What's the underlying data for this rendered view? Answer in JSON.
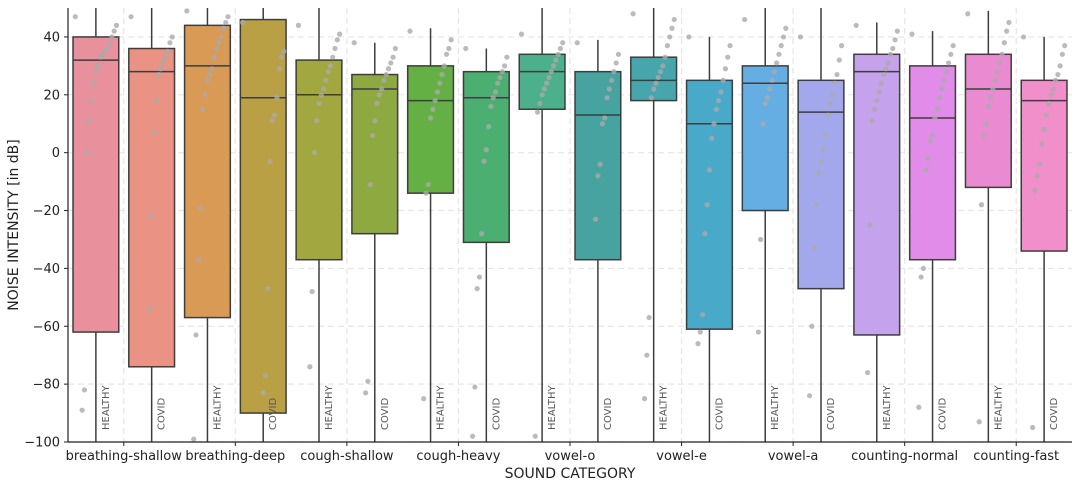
{
  "chart_data": {
    "type": "box",
    "xlabel": "SOUND CATEGORY",
    "ylabel": "NOISE INTENSITY [in dB]",
    "ylim": [
      -100,
      50
    ],
    "yticks": [
      40,
      20,
      0,
      -20,
      -40,
      -60,
      -80,
      -100
    ],
    "grid": true,
    "categories": [
      "breathing-shallow",
      "breathing-deep",
      "cough-shallow",
      "cough-heavy",
      "vowel-o",
      "vowel-e",
      "vowel-a",
      "counting-normal",
      "counting-fast"
    ],
    "groups": [
      "HEALTHY",
      "COVID"
    ],
    "boxes": [
      {
        "category": "breathing-shallow",
        "group": "HEALTHY",
        "color": "#e8909c",
        "q1": -62,
        "median": 32,
        "q3": 40,
        "whisker_low": -100,
        "whisker_high": 50,
        "points": [
          47,
          44,
          42,
          40,
          38,
          36,
          35,
          34,
          33,
          30,
          28,
          24,
          18,
          11,
          0,
          -82,
          -89
        ]
      },
      {
        "category": "breathing-shallow",
        "group": "COVID",
        "color": "#ea9283",
        "q1": -74,
        "median": 28,
        "q3": 36,
        "whisker_low": -100,
        "whisker_high": 50,
        "points": [
          47,
          40,
          38,
          35,
          33,
          31,
          29,
          27,
          18,
          7,
          -22,
          -54
        ]
      },
      {
        "category": "breathing-deep",
        "group": "HEALTHY",
        "color": "#d99a55",
        "q1": -57,
        "median": 30,
        "q3": 44,
        "whisker_low": -100,
        "whisker_high": 50,
        "points": [
          49,
          47,
          45,
          43,
          40,
          38,
          36,
          33,
          29,
          27,
          25,
          20,
          15,
          -19,
          -37,
          -63,
          -99
        ]
      },
      {
        "category": "breathing-deep",
        "group": "COVID",
        "color": "#b9a044",
        "q1": -90,
        "median": 19,
        "q3": 46,
        "whisker_low": -100,
        "whisker_high": 50,
        "points": [
          45,
          35,
          33,
          29,
          19,
          13,
          11,
          -3,
          -47,
          -77,
          -83
        ]
      },
      {
        "category": "cough-shallow",
        "group": "HEALTHY",
        "color": "#a3a73f",
        "q1": -37,
        "median": 20,
        "q3": 32,
        "whisker_low": -100,
        "whisker_high": 50,
        "points": [
          44,
          41,
          39,
          36,
          33,
          30,
          28,
          25,
          22,
          20,
          17,
          11,
          0,
          -48,
          -74
        ]
      },
      {
        "category": "cough-shallow",
        "group": "COVID",
        "color": "#8ea93f",
        "q1": -28,
        "median": 22,
        "q3": 27,
        "whisker_low": -100,
        "whisker_high": 38,
        "points": [
          38,
          36,
          33,
          31,
          29,
          27,
          25,
          22,
          20,
          17,
          11,
          6,
          -11,
          -79,
          -83
        ]
      },
      {
        "category": "cough-heavy",
        "group": "HEALTHY",
        "color": "#64b045",
        "q1": -14,
        "median": 18,
        "q3": 30,
        "whisker_low": -100,
        "whisker_high": 43,
        "points": [
          42,
          39,
          36,
          34,
          30,
          27,
          24,
          21,
          18,
          15,
          12,
          -11,
          -14,
          -85
        ]
      },
      {
        "category": "cough-heavy",
        "group": "COVID",
        "color": "#4caf72",
        "q1": -31,
        "median": 19,
        "q3": 28,
        "whisker_low": -100,
        "whisker_high": 36,
        "points": [
          36,
          33,
          30,
          28,
          26,
          24,
          21,
          19,
          16,
          9,
          1,
          -3,
          -28,
          -43,
          -47,
          -81,
          -98
        ]
      },
      {
        "category": "vowel-o",
        "group": "HEALTHY",
        "color": "#4cb08d",
        "q1": 15,
        "median": 28,
        "q3": 34,
        "whisker_low": -100,
        "whisker_high": 50,
        "points": [
          41,
          38,
          36,
          34,
          32,
          30,
          28,
          26,
          24,
          22,
          20,
          17,
          14,
          -98
        ]
      },
      {
        "category": "vowel-o",
        "group": "COVID",
        "color": "#47a3a0",
        "q1": -37,
        "median": 13,
        "q3": 28,
        "whisker_low": -100,
        "whisker_high": 39,
        "points": [
          38,
          34,
          31,
          28,
          25,
          22,
          19,
          12,
          10,
          -4,
          -8,
          -23
        ]
      },
      {
        "category": "vowel-e",
        "group": "HEALTHY",
        "color": "#47a6ab",
        "q1": 18,
        "median": 25,
        "q3": 33,
        "whisker_low": -100,
        "whisker_high": 50,
        "points": [
          48,
          46,
          43,
          40,
          37,
          33,
          30,
          28,
          26,
          24,
          22,
          19,
          -57,
          -70,
          -85
        ]
      },
      {
        "category": "vowel-e",
        "group": "COVID",
        "color": "#49a9c8",
        "q1": -61,
        "median": 10,
        "q3": 25,
        "whisker_low": -100,
        "whisker_high": 40,
        "points": [
          40,
          37,
          33,
          29,
          25,
          21,
          18,
          15,
          10,
          5,
          -6,
          -18,
          -28,
          -56,
          -62,
          -66
        ]
      },
      {
        "category": "vowel-a",
        "group": "HEALTHY",
        "color": "#64aee4",
        "q1": -20,
        "median": 24,
        "q3": 30,
        "whisker_low": -100,
        "whisker_high": 50,
        "points": [
          46,
          43,
          40,
          37,
          34,
          31,
          28,
          25,
          22,
          19,
          17,
          10,
          -30,
          -62
        ]
      },
      {
        "category": "vowel-a",
        "group": "COVID",
        "color": "#a3a8ec",
        "q1": -47,
        "median": 14,
        "q3": 25,
        "whisker_low": -100,
        "whisker_high": 50,
        "points": [
          40,
          37,
          32,
          27,
          24,
          20,
          17,
          13,
          6,
          1,
          -3,
          -7,
          -18,
          -33,
          -60,
          -84
        ]
      },
      {
        "category": "counting-normal",
        "group": "HEALTHY",
        "color": "#c5a2ec",
        "q1": -63,
        "median": 28,
        "q3": 34,
        "whisker_low": -100,
        "whisker_high": 45,
        "points": [
          44,
          42,
          39,
          36,
          34,
          31,
          29,
          27,
          24,
          21,
          18,
          15,
          11,
          -25,
          -76
        ]
      },
      {
        "category": "counting-normal",
        "group": "COVID",
        "color": "#e18ce8",
        "q1": -37,
        "median": 12,
        "q3": 30,
        "whisker_low": -100,
        "whisker_high": 42,
        "points": [
          41,
          37,
          34,
          31,
          28,
          25,
          22,
          19,
          15,
          12,
          6,
          4,
          -2,
          -6,
          -40,
          -43,
          -88
        ]
      },
      {
        "category": "counting-fast",
        "group": "HEALTHY",
        "color": "#ea8ad0",
        "q1": -12,
        "median": 22,
        "q3": 34,
        "whisker_low": -100,
        "whisker_high": 49,
        "points": [
          48,
          45,
          42,
          38,
          34,
          31,
          28,
          25,
          22,
          19,
          16,
          10,
          6,
          -18,
          -93
        ]
      },
      {
        "category": "counting-fast",
        "group": "COVID",
        "color": "#f18fcb",
        "q1": -34,
        "median": 18,
        "q3": 25,
        "whisker_low": -100,
        "whisker_high": 40,
        "points": [
          40,
          37,
          34,
          30,
          27,
          25,
          22,
          20,
          17,
          13,
          8,
          3,
          -4,
          -8,
          -13,
          -95
        ]
      }
    ]
  }
}
